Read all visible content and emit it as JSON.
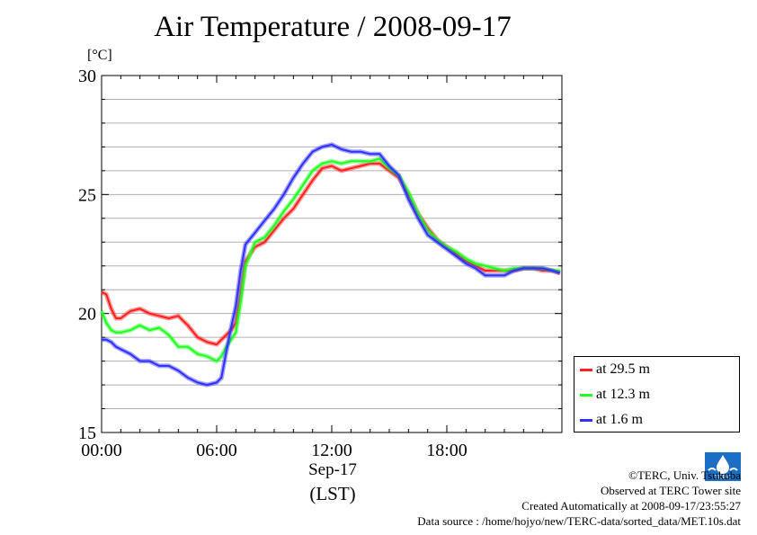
{
  "title": "Air Temperature / 2008-09-17",
  "y_unit": "[°C]",
  "x_date_label": "Sep-17",
  "x_tz_label": "(LST)",
  "credits": [
    "©TERC, Univ. Tsukuba",
    "Observed at TERC Tower site",
    "Created Automatically at 2008-09-17/23:55:27",
    "Data source : /home/hojyo/new/TERC-data/sorted_data/MET.10s.dat"
  ],
  "logo_text": "TERC",
  "legend": [
    {
      "label": "at 29.5 m",
      "color": "#ff2020"
    },
    {
      "label": "at 12.3 m",
      "color": "#20ff20"
    },
    {
      "label": "at 1.6 m",
      "color": "#3030ff"
    }
  ],
  "chart_data": {
    "type": "line",
    "title": "Air Temperature / 2008-09-17",
    "ylabel": "[°C]",
    "xlabel": "Sep-17 (LST)",
    "ylim": [
      15,
      30
    ],
    "yticks": [
      15,
      20,
      25,
      30
    ],
    "xlim": [
      0,
      24
    ],
    "xticks": [
      0,
      6,
      12,
      18
    ],
    "xtick_labels": [
      "00:00",
      "06:00",
      "12:00",
      "18:00"
    ],
    "grid": "horizontal",
    "legend_position": "lower-right, outside plot",
    "series": [
      {
        "name": "at 29.5 m",
        "color": "#ff2020",
        "x": [
          0,
          0.25,
          0.5,
          0.75,
          1,
          1.5,
          2,
          2.5,
          3,
          3.5,
          4,
          4.5,
          5,
          5.5,
          6,
          6.25,
          6.5,
          6.75,
          7,
          7.25,
          7.5,
          8,
          8.5,
          9,
          9.5,
          10,
          10.5,
          11,
          11.5,
          12,
          12.5,
          13,
          13.5,
          14,
          14.5,
          15,
          15.5,
          16,
          16.5,
          17,
          17.5,
          18,
          18.5,
          19,
          19.5,
          20,
          20.5,
          21,
          21.5,
          22,
          22.5,
          23,
          23.5,
          23.9
        ],
        "y": [
          20.9,
          20.8,
          20.2,
          19.8,
          19.8,
          20.1,
          20.2,
          20.0,
          19.9,
          19.8,
          19.9,
          19.5,
          19.0,
          18.8,
          18.7,
          18.9,
          19.1,
          19.3,
          19.6,
          20.8,
          22.2,
          22.8,
          23.0,
          23.5,
          24.0,
          24.4,
          25.0,
          25.6,
          26.1,
          26.2,
          26.0,
          26.1,
          26.2,
          26.3,
          26.3,
          26.0,
          25.7,
          25.0,
          24.2,
          23.6,
          23.1,
          22.8,
          22.5,
          22.2,
          22.0,
          21.8,
          21.8,
          21.8,
          21.8,
          21.9,
          21.9,
          21.8,
          21.8,
          21.7
        ]
      },
      {
        "name": "at 12.3 m",
        "color": "#20ff20",
        "x": [
          0,
          0.25,
          0.5,
          0.75,
          1,
          1.5,
          2,
          2.5,
          3,
          3.5,
          4,
          4.5,
          5,
          5.5,
          6,
          6.25,
          6.5,
          6.75,
          7,
          7.25,
          7.5,
          8,
          8.5,
          9,
          9.5,
          10,
          10.5,
          11,
          11.5,
          12,
          12.5,
          13,
          13.5,
          14,
          14.5,
          15,
          15.5,
          16,
          16.5,
          17,
          17.5,
          18,
          18.5,
          19,
          19.5,
          20,
          20.5,
          21,
          21.5,
          22,
          22.5,
          23,
          23.5,
          23.9
        ],
        "y": [
          20.1,
          19.6,
          19.3,
          19.2,
          19.2,
          19.3,
          19.5,
          19.3,
          19.4,
          19.1,
          18.6,
          18.6,
          18.3,
          18.2,
          18.0,
          18.2,
          18.6,
          18.9,
          19.2,
          20.5,
          22.0,
          23.0,
          23.2,
          23.7,
          24.3,
          24.8,
          25.4,
          26.0,
          26.3,
          26.4,
          26.3,
          26.4,
          26.4,
          26.4,
          26.5,
          26.1,
          25.8,
          25.1,
          24.2,
          23.5,
          23.1,
          22.8,
          22.6,
          22.3,
          22.1,
          22.0,
          21.9,
          21.8,
          21.9,
          21.9,
          21.9,
          21.9,
          21.8,
          21.8
        ]
      },
      {
        "name": "at 1.6 m",
        "color": "#3030ff",
        "x": [
          0,
          0.25,
          0.5,
          0.75,
          1,
          1.5,
          2,
          2.5,
          3,
          3.5,
          4,
          4.5,
          5,
          5.5,
          6,
          6.25,
          6.5,
          6.75,
          7,
          7.25,
          7.5,
          8,
          8.5,
          9,
          9.5,
          10,
          10.5,
          11,
          11.5,
          12,
          12.5,
          13,
          13.5,
          14,
          14.5,
          15,
          15.5,
          16,
          16.5,
          17,
          17.5,
          18,
          18.5,
          19,
          19.5,
          20,
          20.5,
          21,
          21.5,
          22,
          22.5,
          23,
          23.5,
          23.9
        ],
        "y": [
          18.9,
          18.9,
          18.8,
          18.6,
          18.5,
          18.3,
          18.0,
          18.0,
          17.8,
          17.8,
          17.6,
          17.3,
          17.1,
          17.0,
          17.1,
          17.3,
          18.4,
          19.4,
          20.3,
          21.8,
          22.9,
          23.4,
          23.9,
          24.4,
          25.0,
          25.7,
          26.3,
          26.8,
          27.0,
          27.1,
          26.9,
          26.8,
          26.8,
          26.7,
          26.7,
          26.2,
          25.8,
          24.8,
          24.0,
          23.3,
          23.0,
          22.7,
          22.4,
          22.1,
          21.9,
          21.6,
          21.6,
          21.6,
          21.8,
          21.9,
          21.9,
          21.9,
          21.8,
          21.7
        ]
      }
    ]
  }
}
